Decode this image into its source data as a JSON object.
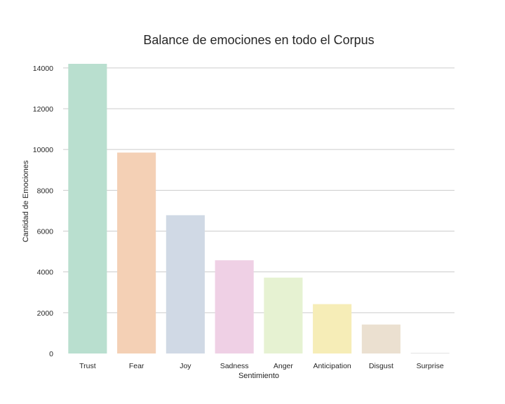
{
  "chart_data": {
    "type": "bar",
    "title": "Balance de emociones en todo el Corpus",
    "xlabel": "Sentimiento",
    "ylabel": "Cantidad de Emociones",
    "categories": [
      "Trust",
      "Fear",
      "Joy",
      "Sadness",
      "Anger",
      "Anticipation",
      "Disgust",
      "Surprise"
    ],
    "values": [
      14200,
      9850,
      6780,
      4570,
      3720,
      2420,
      1420,
      30
    ],
    "ylim": [
      0,
      14200
    ],
    "yticks": [
      0,
      2000,
      4000,
      6000,
      8000,
      10000,
      12000,
      14000
    ],
    "ytick_labels": [
      "0",
      "2000",
      "4000",
      "6000",
      "8000",
      "10000",
      "12000",
      "14000"
    ],
    "grid": "horizontal",
    "colors": [
      "#b9dfcf",
      "#f4d0b5",
      "#d0d9e5",
      "#efd0e5",
      "#e6f2d2",
      "#f6edb7",
      "#ebe0d0",
      "#e3e3e3"
    ]
  }
}
